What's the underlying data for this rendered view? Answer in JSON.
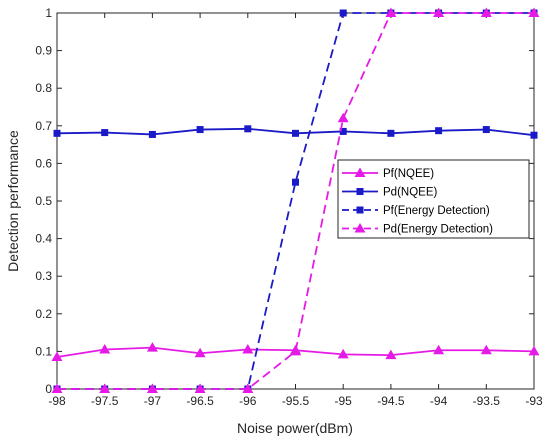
{
  "chart_data": {
    "type": "line",
    "xlabel": "Noise power(dBm)",
    "ylabel": "Detection performance",
    "xlim": [
      -98,
      -93
    ],
    "ylim": [
      0,
      1
    ],
    "x": [
      -98,
      -97.5,
      -97,
      -96.5,
      -96,
      -95.5,
      -95,
      -94.5,
      -94,
      -93.5,
      -93
    ],
    "x_tick_labels": [
      "-98",
      "-97.5",
      "-97",
      "-96.5",
      "-96",
      "-95.5",
      "-95",
      "-94.5",
      "-94",
      "-93.5",
      "-93"
    ],
    "y_ticks": [
      0,
      0.1,
      0.2,
      0.3,
      0.4,
      0.5,
      0.6,
      0.7,
      0.8,
      0.9,
      1
    ],
    "y_tick_labels": [
      "0",
      "0.1",
      "0.2",
      "0.3",
      "0.4",
      "0.5",
      "0.6",
      "0.7",
      "0.8",
      "0.9",
      "1"
    ],
    "legend_position": "right",
    "series": [
      {
        "name": "Pf(NQEE)",
        "values": [
          0.085,
          0.105,
          0.11,
          0.095,
          0.105,
          0.103,
          0.092,
          0.09,
          0.103,
          0.103,
          0.1
        ],
        "color": "#e61ae6",
        "line_style": "solid",
        "marker": "triangle"
      },
      {
        "name": "Pd(NQEE)",
        "values": [
          0.68,
          0.682,
          0.677,
          0.69,
          0.692,
          0.68,
          0.685,
          0.68,
          0.687,
          0.69,
          0.675
        ],
        "color": "#1a1ac8",
        "line_style": "solid",
        "marker": "square"
      },
      {
        "name": "Pf(Energy Detection)",
        "values": [
          0,
          0,
          0,
          0,
          0,
          0.55,
          1,
          1,
          1,
          1,
          1
        ],
        "color": "#1a1ac8",
        "line_style": "dashed",
        "marker": "square"
      },
      {
        "name": "Pd(Energy Detection)",
        "values": [
          0,
          0,
          0,
          0,
          0,
          0.1,
          0.72,
          1,
          1,
          1,
          1
        ],
        "color": "#e61ae6",
        "line_style": "dashed",
        "marker": "triangle"
      }
    ]
  }
}
